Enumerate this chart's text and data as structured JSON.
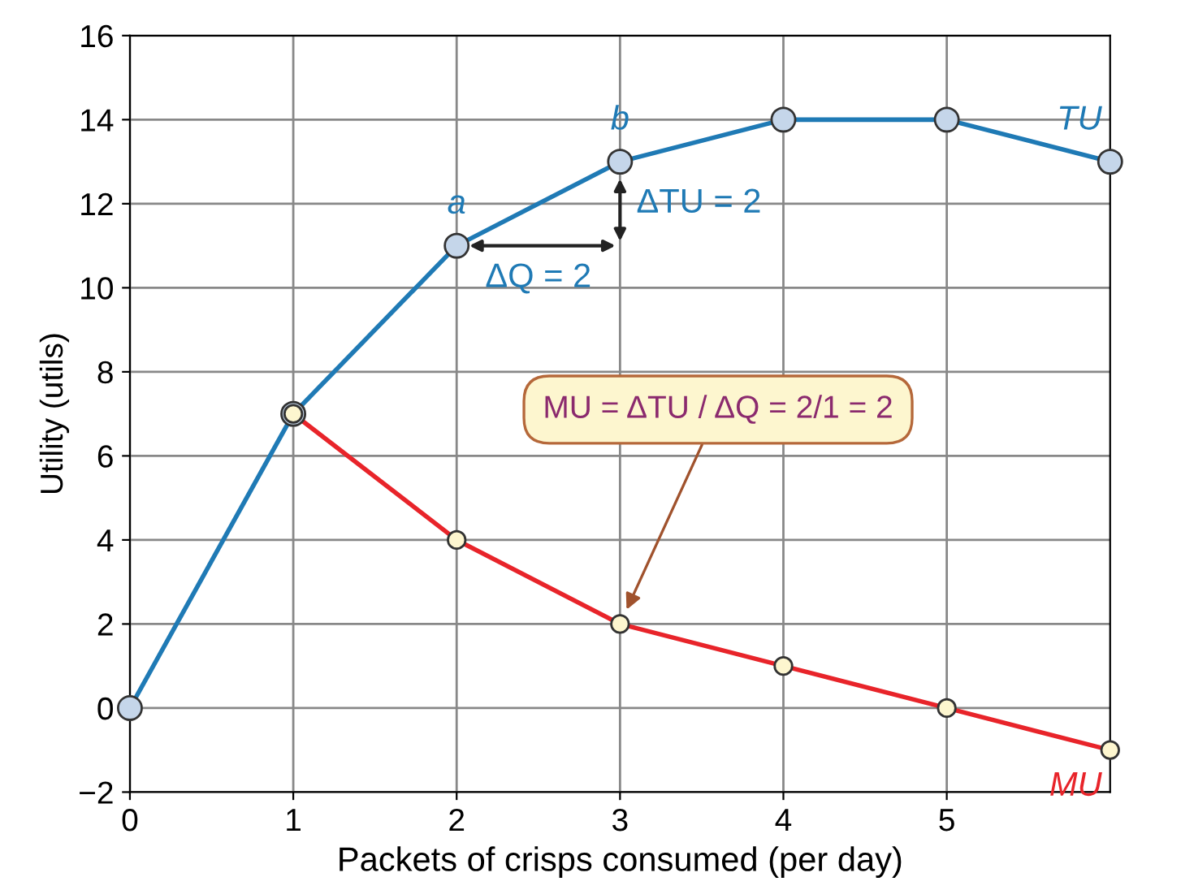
{
  "chart_data": {
    "type": "line",
    "xlabel": "Packets of crisps consumed (per day)",
    "ylabel": "Utility (utils)",
    "series": [
      {
        "name": "TU",
        "color": "#1f7ab5",
        "x": [
          0,
          1,
          2,
          3,
          4,
          5,
          6
        ],
        "values": [
          0,
          7,
          11,
          13,
          14,
          14,
          13
        ]
      },
      {
        "name": "MU",
        "color": "#e8242a",
        "x": [
          1,
          2,
          3,
          4,
          5,
          6
        ],
        "values": [
          7,
          4,
          2,
          1,
          0,
          -1
        ]
      }
    ],
    "xlim": [
      0,
      6
    ],
    "xticks": [
      0,
      1,
      2,
      3,
      4,
      5
    ],
    "ylim": [
      -2,
      16
    ],
    "yticks": [
      {
        "value": -2,
        "label": "−2"
      },
      0,
      2,
      4,
      6,
      8,
      10,
      12,
      14,
      16
    ],
    "grid": true,
    "marker": "circle",
    "line_style": "solid",
    "annotations": [
      "a",
      "b",
      "ΔTU = 2",
      "ΔQ = 2",
      "MU = ΔTU / ΔQ = 2/1 = 2"
    ]
  }
}
